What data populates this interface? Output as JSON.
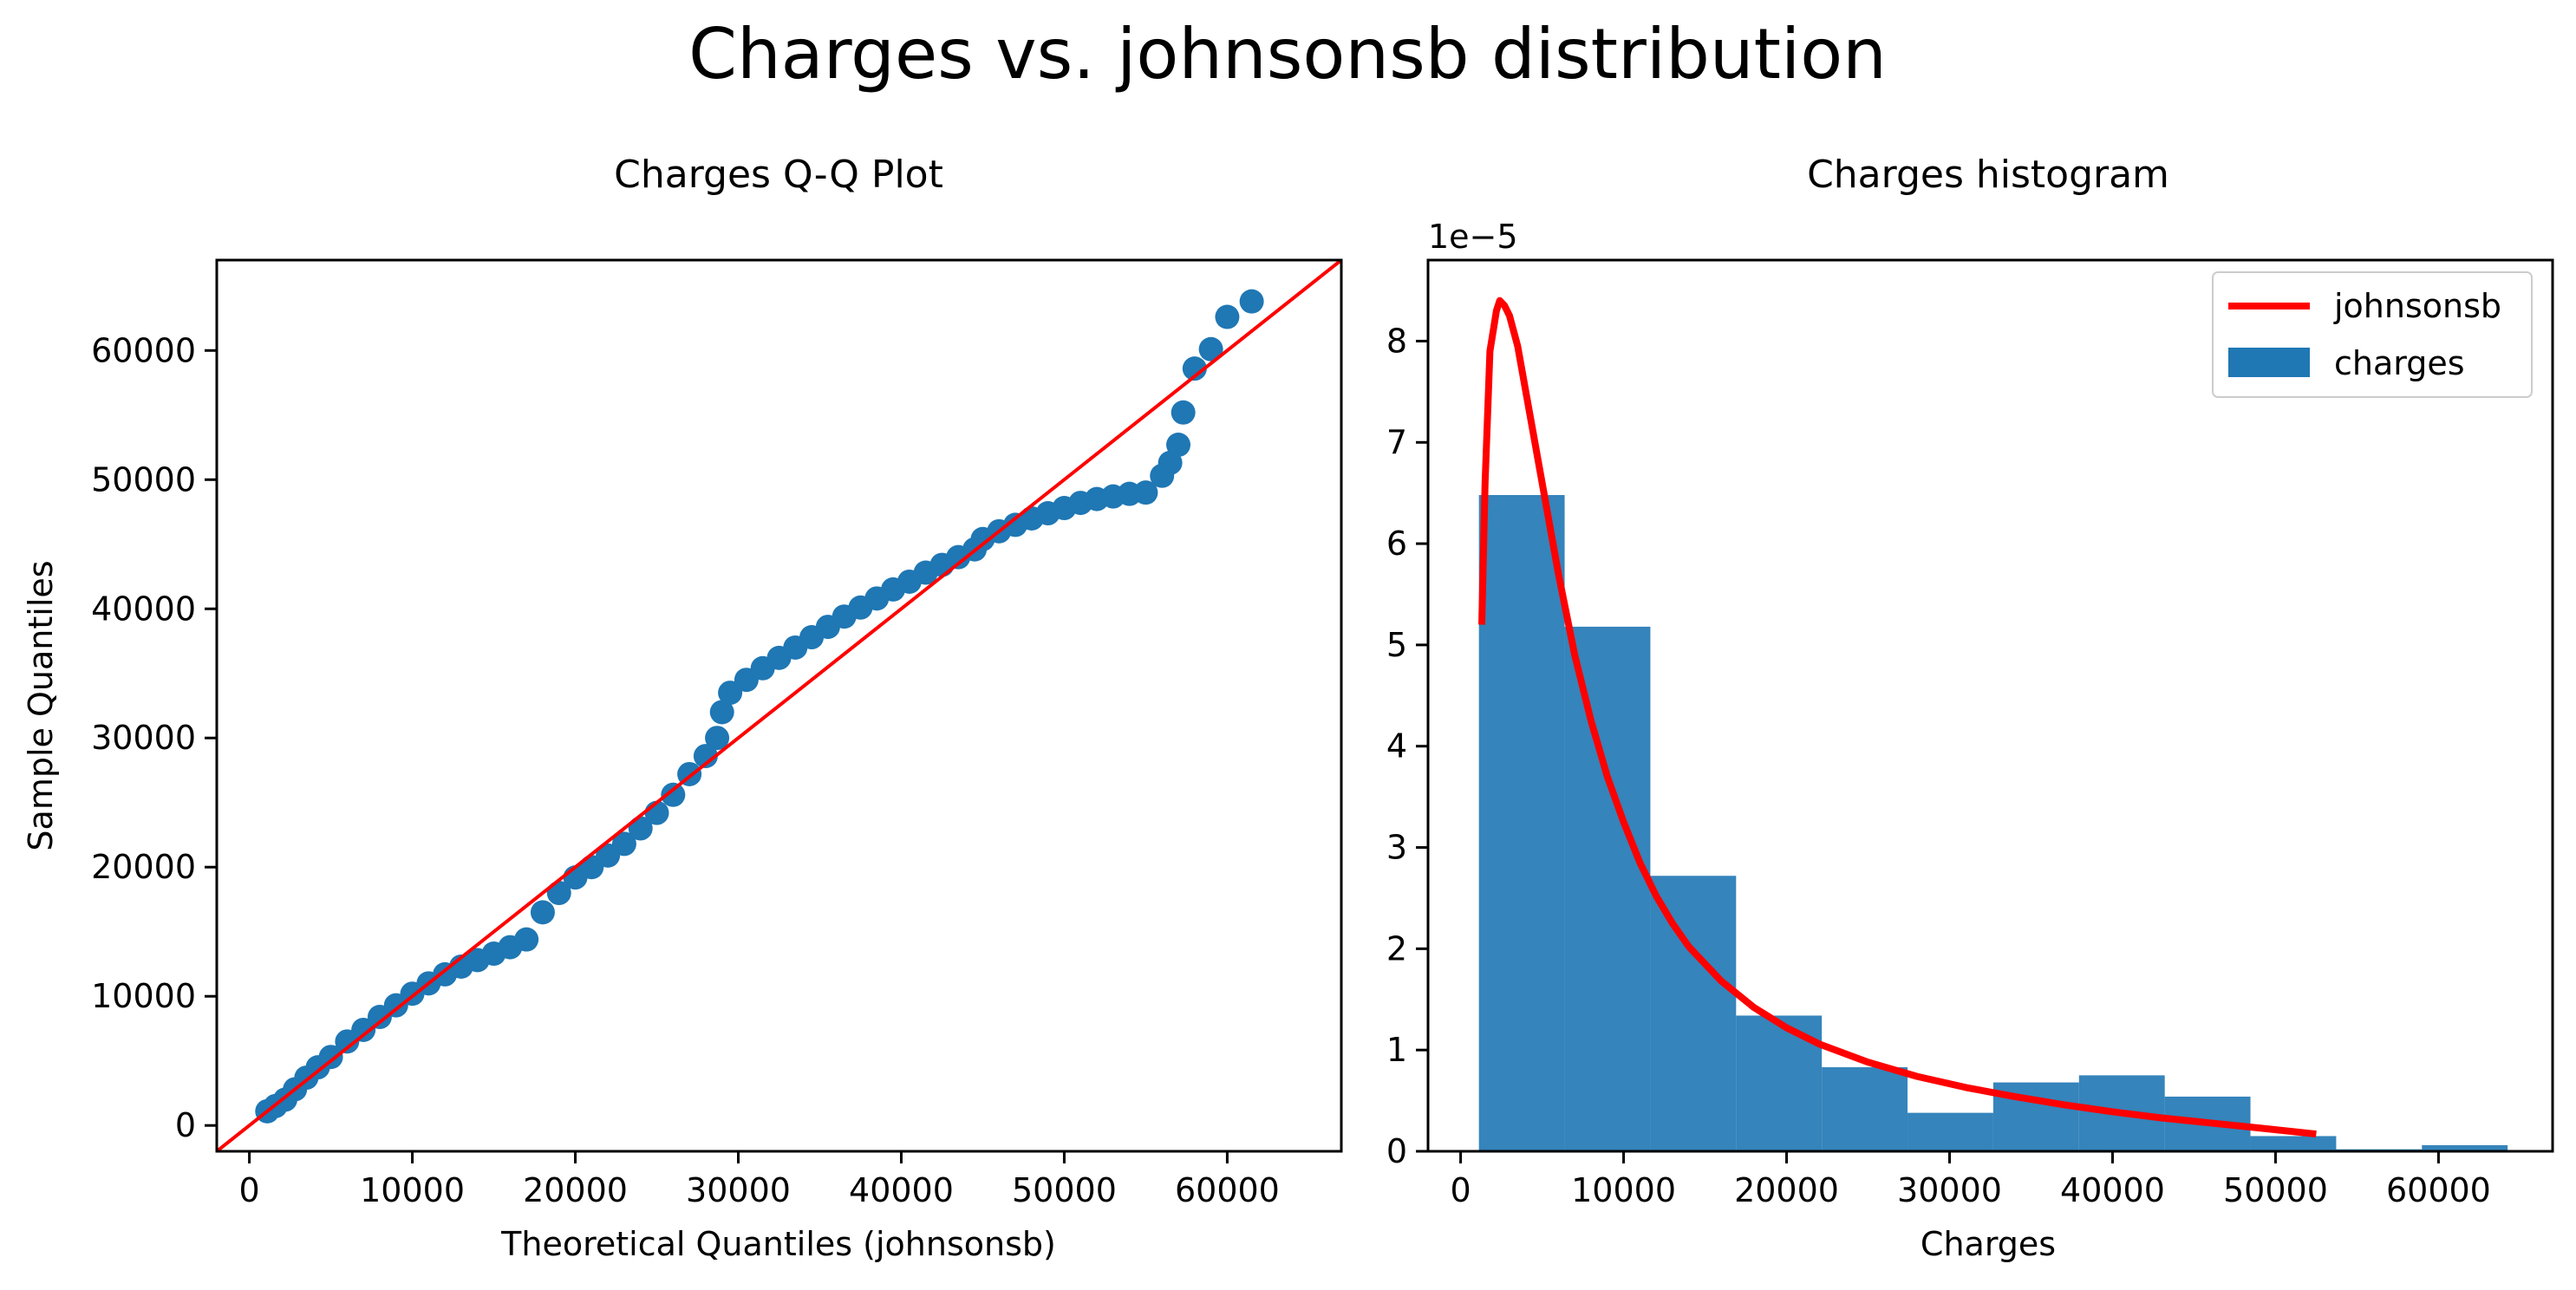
{
  "figure": {
    "suptitle": "Charges vs. johnsonsb distribution"
  },
  "colors": {
    "points": "#1f77b4",
    "bars": "#1f77b4",
    "ref_line": "#ff0000",
    "fit_curve": "#ff0000"
  },
  "chart_data": [
    {
      "type": "scatter",
      "title": "Charges Q-Q Plot",
      "xlabel": "Theoretical Quantiles (johnsonsb)",
      "ylabel": "Sample Quantiles",
      "xlim": [
        -2000,
        67000
      ],
      "ylim": [
        -2000,
        67000
      ],
      "xticks": [
        0,
        10000,
        20000,
        30000,
        40000,
        50000,
        60000
      ],
      "yticks": [
        0,
        10000,
        20000,
        30000,
        40000,
        50000,
        60000
      ],
      "xtick_labels": [
        "0",
        "10000",
        "20000",
        "30000",
        "40000",
        "50000",
        "60000"
      ],
      "ytick_labels": [
        "0",
        "10000",
        "20000",
        "30000",
        "40000",
        "50000",
        "60000"
      ],
      "grid": false,
      "reference_line": {
        "from": [
          -2000,
          -2000
        ],
        "to": [
          67000,
          67000
        ]
      },
      "series": [
        {
          "points": [
            [
              1100,
              1100
            ],
            [
              1600,
              1500
            ],
            [
              2200,
              2000
            ],
            [
              2800,
              2800
            ],
            [
              3500,
              3700
            ],
            [
              4200,
              4500
            ],
            [
              5000,
              5300
            ],
            [
              6000,
              6500
            ],
            [
              7000,
              7400
            ],
            [
              8000,
              8400
            ],
            [
              9000,
              9300
            ],
            [
              10000,
              10200
            ],
            [
              11000,
              11000
            ],
            [
              12000,
              11700
            ],
            [
              13000,
              12300
            ],
            [
              14000,
              12800
            ],
            [
              15000,
              13300
            ],
            [
              16000,
              13800
            ],
            [
              17000,
              14400
            ],
            [
              18000,
              16500
            ],
            [
              19000,
              18000
            ],
            [
              20000,
              19200
            ],
            [
              21000,
              20000
            ],
            [
              22000,
              20900
            ],
            [
              23000,
              21800
            ],
            [
              24000,
              23000
            ],
            [
              25000,
              24200
            ],
            [
              26000,
              25600
            ],
            [
              27000,
              27200
            ],
            [
              28000,
              28600
            ],
            [
              28700,
              30000
            ],
            [
              29000,
              32000
            ],
            [
              29500,
              33500
            ],
            [
              30500,
              34500
            ],
            [
              31500,
              35400
            ],
            [
              32500,
              36200
            ],
            [
              33500,
              37000
            ],
            [
              34500,
              37800
            ],
            [
              35500,
              38600
            ],
            [
              36500,
              39400
            ],
            [
              37500,
              40100
            ],
            [
              38500,
              40800
            ],
            [
              39500,
              41500
            ],
            [
              40500,
              42100
            ],
            [
              41500,
              42800
            ],
            [
              42500,
              43400
            ],
            [
              43500,
              44000
            ],
            [
              44500,
              44600
            ],
            [
              45000,
              45400
            ],
            [
              46000,
              46000
            ],
            [
              47000,
              46500
            ],
            [
              48000,
              47000
            ],
            [
              49000,
              47400
            ],
            [
              50000,
              47800
            ],
            [
              51000,
              48200
            ],
            [
              52000,
              48500
            ],
            [
              53000,
              48700
            ],
            [
              54000,
              48900
            ],
            [
              55000,
              49000
            ],
            [
              56000,
              50300
            ],
            [
              56500,
              51300
            ],
            [
              57000,
              52700
            ],
            [
              57300,
              55200
            ],
            [
              58000,
              58600
            ],
            [
              59000,
              60100
            ],
            [
              60000,
              62600
            ],
            [
              61500,
              63800
            ]
          ]
        }
      ]
    },
    {
      "type": "bar",
      "title": "Charges histogram",
      "xlabel": "Charges",
      "ylabel": "",
      "y_offset_label": "1e−5",
      "xlim": [
        -2000,
        67000
      ],
      "ylim": [
        0,
        8.8
      ],
      "xticks": [
        0,
        10000,
        20000,
        30000,
        40000,
        50000,
        60000
      ],
      "yticks": [
        0,
        1,
        2,
        3,
        4,
        5,
        6,
        7,
        8
      ],
      "xtick_labels": [
        "0",
        "10000",
        "20000",
        "30000",
        "40000",
        "50000",
        "60000"
      ],
      "ytick_labels": [
        "0",
        "1",
        "2",
        "3",
        "4",
        "5",
        "6",
        "7",
        "8"
      ],
      "grid": false,
      "legend": {
        "placement": "top-right",
        "entries": [
          "johnsonsb",
          "charges"
        ]
      },
      "bins": [
        [
          1122,
          6382,
          6.48
        ],
        [
          6382,
          11642,
          5.18
        ],
        [
          11642,
          16902,
          2.72
        ],
        [
          16902,
          22162,
          1.34
        ],
        [
          22162,
          27422,
          0.83
        ],
        [
          27422,
          32682,
          0.38
        ],
        [
          32682,
          37942,
          0.68
        ],
        [
          37942,
          43202,
          0.75
        ],
        [
          43202,
          48462,
          0.54
        ],
        [
          48462,
          53722,
          0.15
        ],
        [
          53722,
          58982,
          0.02
        ],
        [
          58982,
          64242,
          0.06
        ]
      ],
      "series": [
        {
          "name": "johnsonsb",
          "points": [
            [
              1300,
              5.2
            ],
            [
              1500,
              6.6
            ],
            [
              1800,
              7.9
            ],
            [
              2200,
              8.3
            ],
            [
              2400,
              8.4
            ],
            [
              2700,
              8.35
            ],
            [
              3000,
              8.25
            ],
            [
              3500,
              7.95
            ],
            [
              4000,
              7.5
            ],
            [
              5000,
              6.6
            ],
            [
              6000,
              5.7
            ],
            [
              7000,
              4.9
            ],
            [
              8000,
              4.25
            ],
            [
              9000,
              3.7
            ],
            [
              10000,
              3.25
            ],
            [
              11000,
              2.85
            ],
            [
              12000,
              2.52
            ],
            [
              13000,
              2.25
            ],
            [
              14000,
              2.02
            ],
            [
              16000,
              1.68
            ],
            [
              18000,
              1.42
            ],
            [
              20000,
              1.22
            ],
            [
              22000,
              1.06
            ],
            [
              25000,
              0.88
            ],
            [
              28000,
              0.74
            ],
            [
              31000,
              0.63
            ],
            [
              34000,
              0.54
            ],
            [
              37000,
              0.46
            ],
            [
              40000,
              0.39
            ],
            [
              43000,
              0.33
            ],
            [
              46000,
              0.28
            ],
            [
              49000,
              0.23
            ],
            [
              52500,
              0.17
            ]
          ]
        },
        {
          "name": "charges"
        }
      ]
    }
  ]
}
